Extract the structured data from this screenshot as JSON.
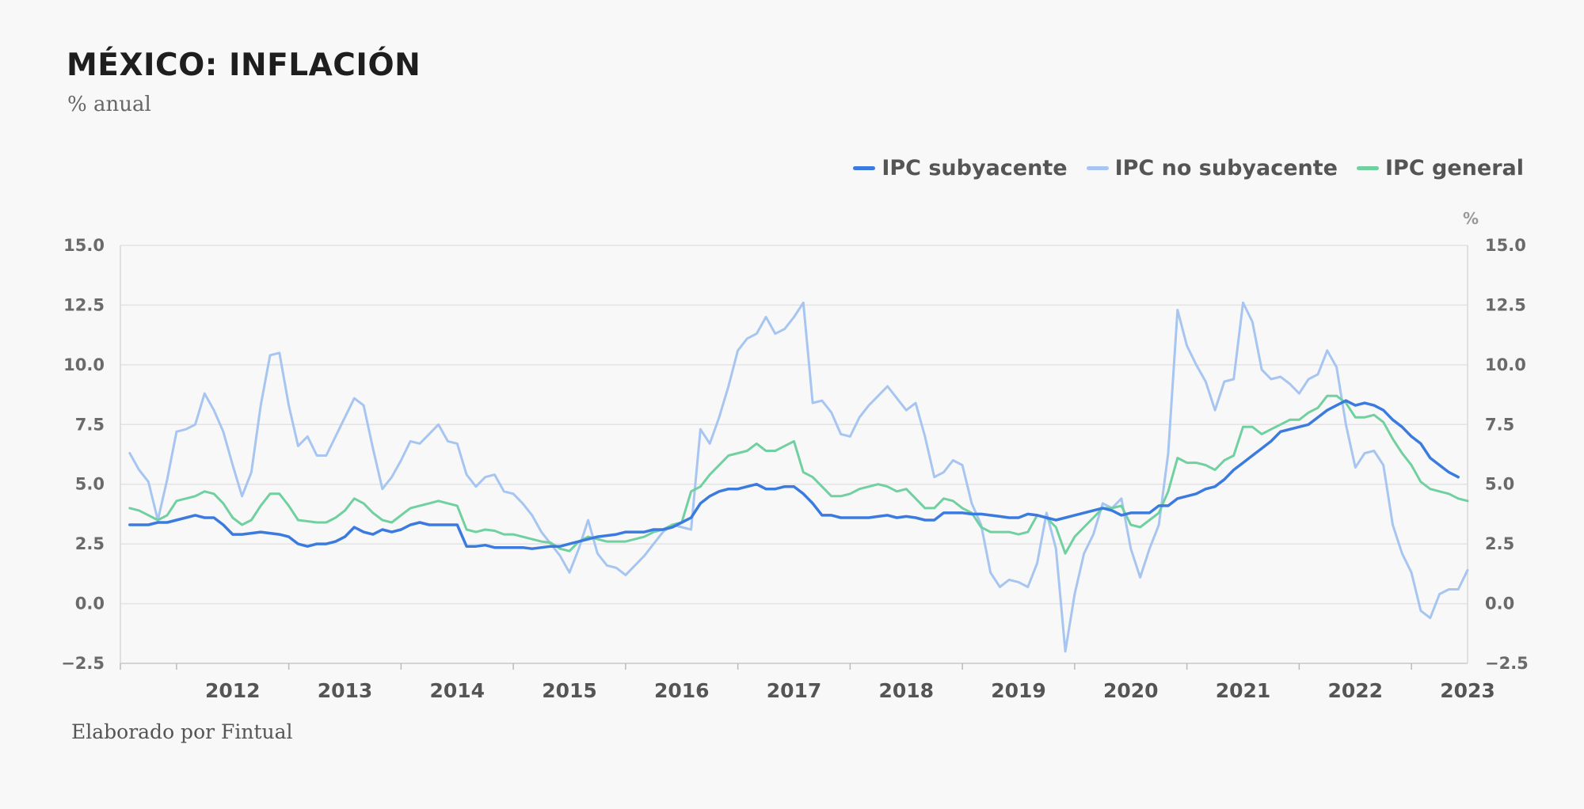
{
  "header": {
    "title": "MÉXICO: INFLACIÓN",
    "subtitle": "% anual"
  },
  "footer": {
    "credit": "Elaborado por Fintual"
  },
  "chart_data": {
    "type": "line",
    "title": "MÉXICO: INFLACIÓN",
    "subtitle": "% anual",
    "ylabel_right": "%",
    "ylim": [
      -2.5,
      15.0
    ],
    "yticks": [
      15.0,
      12.5,
      10.0,
      7.5,
      5.0,
      2.5,
      0.0,
      -2.5
    ],
    "ytick_labels": [
      "15.0",
      "12.5",
      "10.0",
      "7.5",
      "5.0",
      "2.5",
      "0.0",
      "−2.5"
    ],
    "x_start": "2011-07",
    "x_end": "2023-07",
    "x_years": [
      "2012",
      "2013",
      "2014",
      "2015",
      "2016",
      "2017",
      "2018",
      "2019",
      "2020",
      "2021",
      "2022",
      "2023"
    ],
    "legend_position": "top-right",
    "grid": true,
    "series": [
      {
        "name": "IPC subyacente",
        "color": "#3b7be0",
        "start": "2011-08",
        "values": [
          3.3,
          3.3,
          3.3,
          3.4,
          3.4,
          3.5,
          3.6,
          3.7,
          3.6,
          3.6,
          3.3,
          2.9,
          2.9,
          2.95,
          3.0,
          2.95,
          2.9,
          2.8,
          2.5,
          2.4,
          2.5,
          2.5,
          2.6,
          2.8,
          3.2,
          3.0,
          2.9,
          3.1,
          3.0,
          3.1,
          3.3,
          3.4,
          3.3,
          3.3,
          3.3,
          3.3,
          2.4,
          2.4,
          2.45,
          2.35,
          2.35,
          2.35,
          2.35,
          2.3,
          2.35,
          2.4,
          2.4,
          2.5,
          2.6,
          2.7,
          2.8,
          2.85,
          2.9,
          3.0,
          3.0,
          3.0,
          3.1,
          3.1,
          3.2,
          3.4,
          3.6,
          4.2,
          4.5,
          4.7,
          4.8,
          4.8,
          4.9,
          5.0,
          4.8,
          4.8,
          4.9,
          4.9,
          4.6,
          4.2,
          3.7,
          3.7,
          3.6,
          3.6,
          3.6,
          3.6,
          3.65,
          3.7,
          3.6,
          3.65,
          3.6,
          3.5,
          3.5,
          3.8,
          3.8,
          3.8,
          3.75,
          3.75,
          3.7,
          3.65,
          3.6,
          3.6,
          3.75,
          3.7,
          3.6,
          3.5,
          3.6,
          3.7,
          3.8,
          3.9,
          4.0,
          3.9,
          3.7,
          3.8,
          3.8,
          3.8,
          4.1,
          4.1,
          4.4,
          4.5,
          4.6,
          4.8,
          4.9,
          5.2,
          5.6,
          5.9,
          6.2,
          6.5,
          6.8,
          7.2,
          7.3,
          7.4,
          7.5,
          7.8,
          8.1,
          8.3,
          8.5,
          8.3,
          8.4,
          8.3,
          8.1,
          7.7,
          7.4,
          7.0,
          6.7,
          6.1,
          5.8,
          5.5,
          5.3
        ]
      },
      {
        "name": "IPC no subyacente",
        "color": "#a7c5f1",
        "start": "2011-08",
        "values": [
          6.3,
          5.6,
          5.1,
          3.5,
          5.2,
          7.2,
          7.3,
          7.5,
          8.8,
          8.1,
          7.2,
          5.8,
          4.5,
          5.5,
          8.3,
          10.4,
          10.5,
          8.3,
          6.6,
          7.0,
          6.2,
          6.2,
          7.0,
          7.8,
          8.6,
          8.3,
          6.5,
          4.8,
          5.3,
          6.0,
          6.8,
          6.7,
          7.1,
          7.5,
          6.8,
          6.7,
          5.4,
          4.9,
          5.3,
          5.4,
          4.7,
          4.6,
          4.2,
          3.7,
          3.0,
          2.5,
          2.0,
          1.3,
          2.3,
          3.5,
          2.1,
          1.6,
          1.5,
          1.2,
          1.6,
          2.0,
          2.5,
          3.0,
          3.3,
          3.2,
          3.1,
          7.3,
          6.7,
          7.8,
          9.1,
          10.6,
          11.1,
          11.3,
          12.0,
          11.3,
          11.5,
          12.0,
          12.6,
          8.4,
          8.5,
          8.0,
          7.1,
          7.0,
          7.8,
          8.3,
          8.7,
          9.1,
          8.6,
          8.1,
          8.4,
          7.0,
          5.3,
          5.5,
          6.0,
          5.8,
          4.2,
          3.3,
          1.3,
          0.7,
          1.0,
          0.9,
          0.7,
          1.7,
          3.8,
          2.3,
          -2.0,
          0.4,
          2.1,
          2.9,
          4.2,
          4.0,
          4.4,
          2.3,
          1.1,
          2.3,
          3.3,
          6.3,
          12.3,
          10.8,
          10.0,
          9.3,
          8.1,
          9.3,
          9.4,
          12.6,
          11.8,
          9.8,
          9.4,
          9.5,
          9.2,
          8.8,
          9.4,
          9.6,
          10.6,
          9.9,
          7.5,
          5.7,
          6.3,
          6.4,
          5.8,
          3.3,
          2.1,
          1.3,
          -0.3,
          -0.6,
          0.4,
          0.6,
          0.6,
          1.4
        ]
      },
      {
        "name": "IPC general",
        "color": "#71d0a0",
        "start": "2011-08",
        "values": [
          4.0,
          3.9,
          3.7,
          3.5,
          3.7,
          4.3,
          4.4,
          4.5,
          4.7,
          4.6,
          4.2,
          3.6,
          3.3,
          3.5,
          4.1,
          4.6,
          4.6,
          4.1,
          3.5,
          3.45,
          3.4,
          3.4,
          3.6,
          3.9,
          4.4,
          4.2,
          3.8,
          3.5,
          3.4,
          3.7,
          4.0,
          4.1,
          4.2,
          4.3,
          4.2,
          4.1,
          3.1,
          3.0,
          3.1,
          3.05,
          2.9,
          2.9,
          2.8,
          2.7,
          2.6,
          2.55,
          2.3,
          2.2,
          2.6,
          2.8,
          2.7,
          2.6,
          2.6,
          2.6,
          2.7,
          2.8,
          3.0,
          3.1,
          3.3,
          3.4,
          4.7,
          4.9,
          5.4,
          5.8,
          6.2,
          6.3,
          6.4,
          6.7,
          6.4,
          6.4,
          6.6,
          6.8,
          5.5,
          5.3,
          4.9,
          4.5,
          4.5,
          4.6,
          4.8,
          4.9,
          5.0,
          4.9,
          4.7,
          4.8,
          4.4,
          4.0,
          4.0,
          4.4,
          4.3,
          4.0,
          3.8,
          3.2,
          3.0,
          3.0,
          3.0,
          2.9,
          3.0,
          3.7,
          3.6,
          3.2,
          2.1,
          2.8,
          3.2,
          3.6,
          4.0,
          4.0,
          4.1,
          3.3,
          3.2,
          3.5,
          3.8,
          4.7,
          6.1,
          5.9,
          5.9,
          5.8,
          5.6,
          6.0,
          6.2,
          7.4,
          7.4,
          7.1,
          7.3,
          7.5,
          7.7,
          7.7,
          8.0,
          8.2,
          8.7,
          8.7,
          8.4,
          7.8,
          7.8,
          7.9,
          7.6,
          6.9,
          6.3,
          5.8,
          5.1,
          4.8,
          4.7,
          4.6,
          4.4,
          4.3
        ]
      }
    ]
  }
}
